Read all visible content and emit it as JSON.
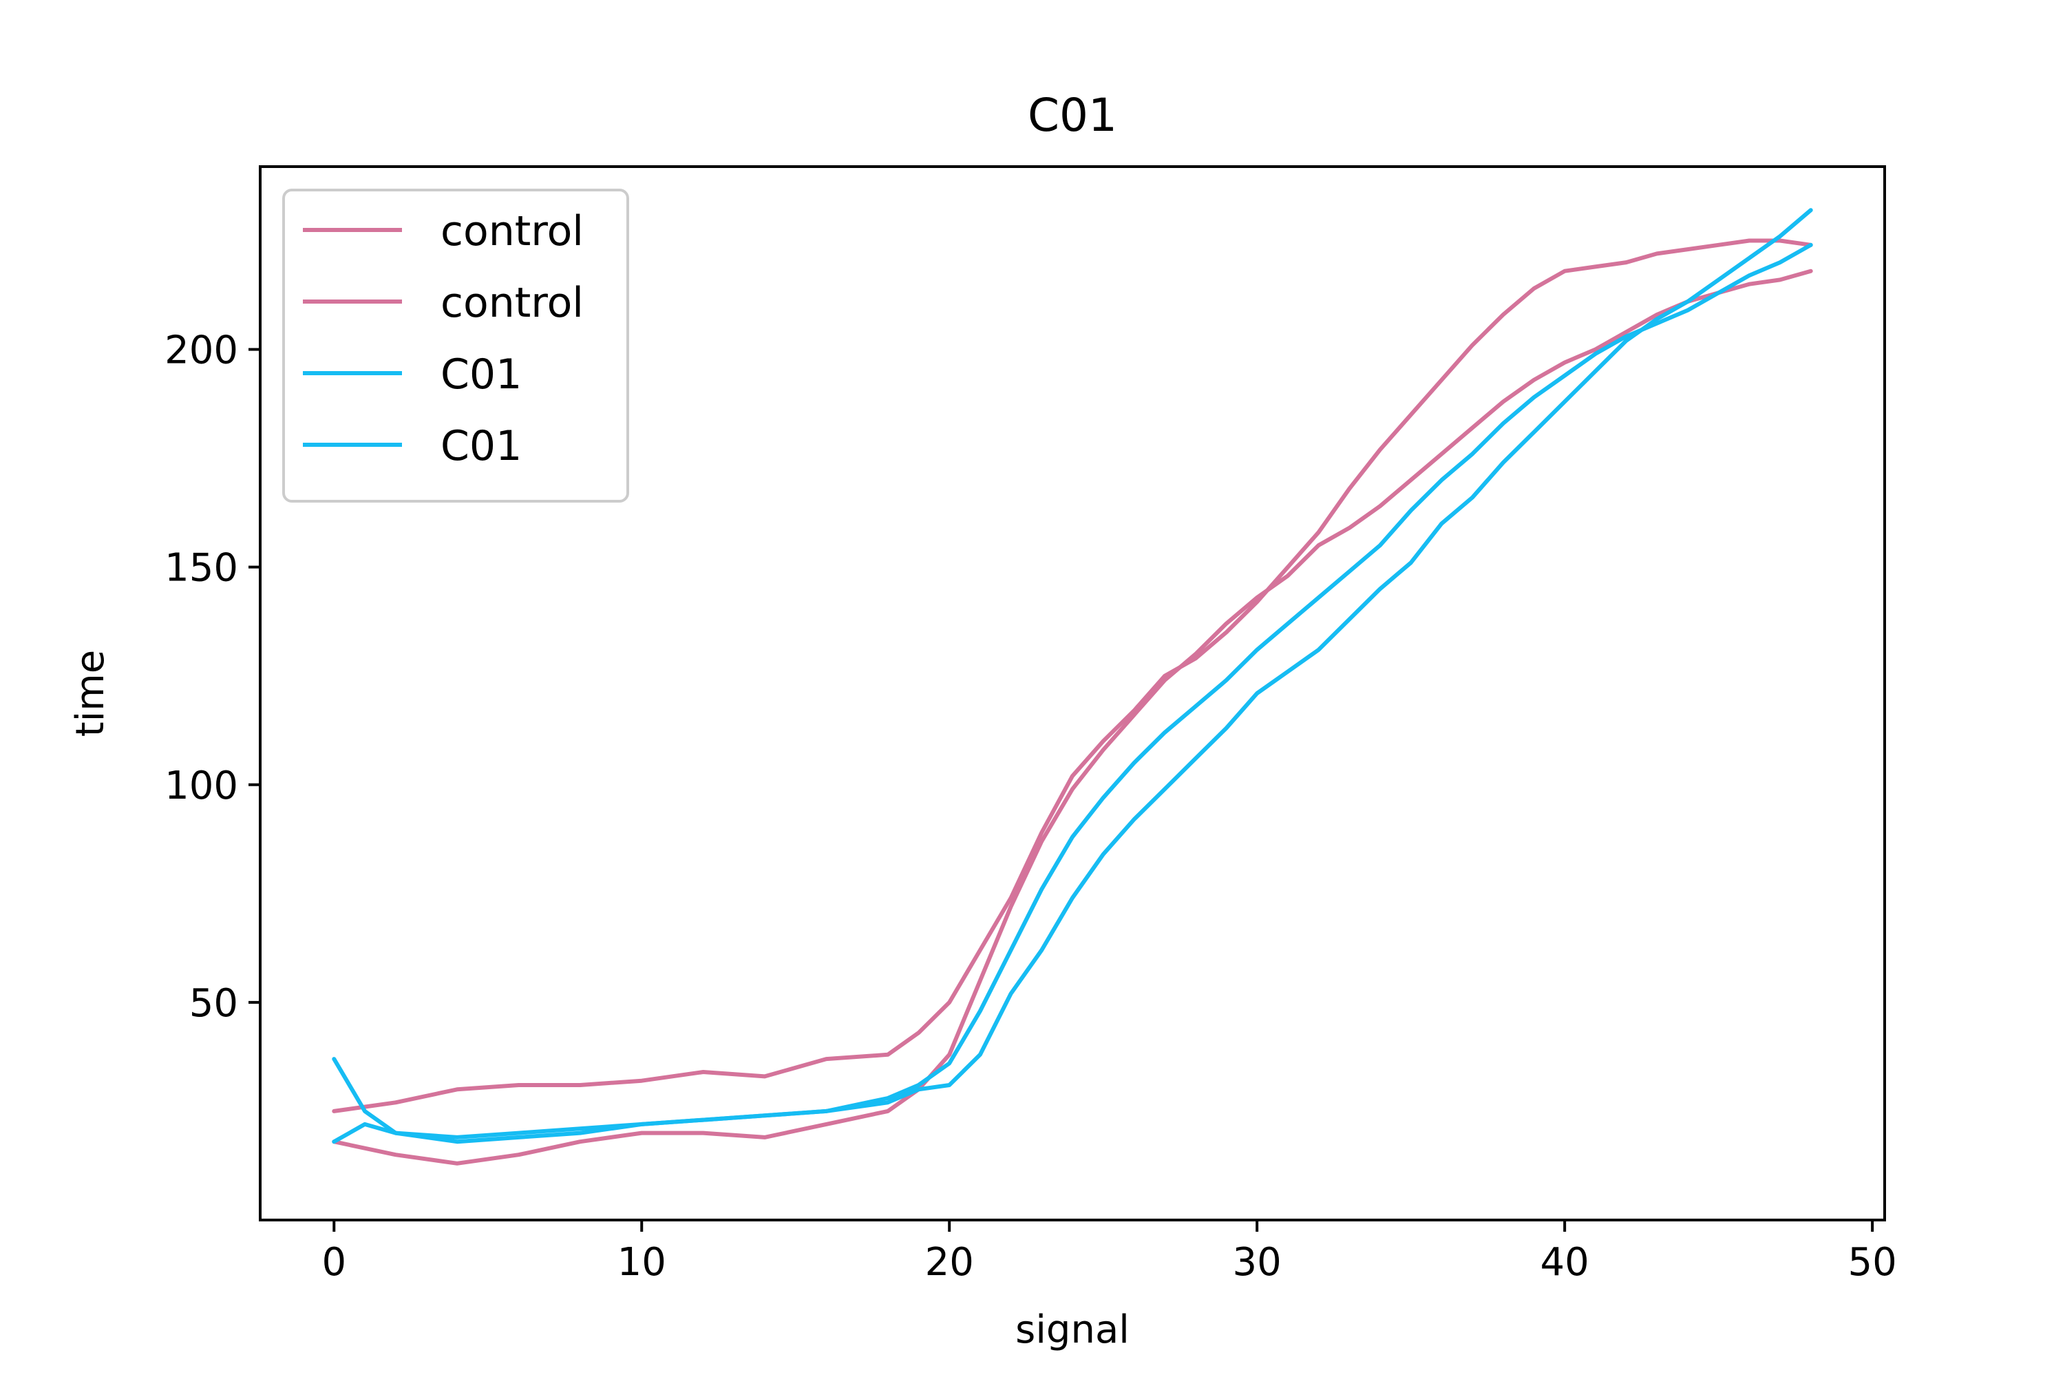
{
  "chart_data": {
    "type": "line",
    "title": "C01",
    "xlabel": "signal",
    "ylabel": "time",
    "xlim": [
      -2.4,
      50.4
    ],
    "ylim": [
      0,
      242
    ],
    "xticks": [
      0,
      10,
      20,
      30,
      40,
      50
    ],
    "xtick_labels": [
      "0",
      "10",
      "20",
      "30",
      "40",
      "50"
    ],
    "yticks": [
      50,
      100,
      150,
      200
    ],
    "ytick_labels": [
      "50",
      "100",
      "150",
      "200"
    ],
    "grid": false,
    "legend": {
      "position": "top-left"
    },
    "colors": {
      "control": "#d4739a",
      "C01": "#16bcf3"
    },
    "series": [
      {
        "name": "control",
        "color": "#d4739a",
        "x": [
          0,
          2,
          4,
          6,
          8,
          10,
          12,
          14,
          16,
          18,
          19,
          20,
          21,
          22,
          23,
          24,
          25,
          26,
          27,
          28,
          29,
          30,
          31,
          32,
          33,
          34,
          35,
          36,
          37,
          38,
          39,
          40,
          41,
          42,
          43,
          44,
          45,
          46,
          47,
          48
        ],
        "y": [
          25,
          27,
          30,
          31,
          31,
          32,
          34,
          33,
          37,
          38,
          43,
          50,
          62,
          74,
          89,
          102,
          110,
          117,
          125,
          129,
          135,
          142,
          150,
          158,
          168,
          177,
          185,
          193,
          201,
          208,
          214,
          218,
          219,
          220,
          222,
          223,
          224,
          225,
          225,
          224
        ]
      },
      {
        "name": "control",
        "color": "#d4739a",
        "x": [
          0,
          2,
          4,
          6,
          8,
          10,
          12,
          14,
          16,
          18,
          19,
          20,
          21,
          22,
          23,
          24,
          25,
          26,
          27,
          28,
          29,
          30,
          31,
          32,
          33,
          34,
          35,
          36,
          37,
          38,
          39,
          40,
          41,
          42,
          43,
          44,
          45,
          46,
          47,
          48
        ],
        "y": [
          18,
          15,
          13,
          15,
          18,
          20,
          20,
          19,
          22,
          25,
          30,
          38,
          55,
          72,
          87,
          99,
          108,
          116,
          124,
          130,
          137,
          143,
          148,
          155,
          159,
          164,
          170,
          176,
          182,
          188,
          193,
          197,
          200,
          204,
          208,
          211,
          213,
          215,
          216,
          218
        ]
      },
      {
        "name": "C01",
        "color": "#16bcf3",
        "x": [
          0,
          1,
          2,
          4,
          6,
          8,
          10,
          12,
          14,
          16,
          18,
          19,
          20,
          21,
          22,
          23,
          24,
          25,
          26,
          27,
          28,
          29,
          30,
          31,
          32,
          33,
          34,
          35,
          36,
          37,
          38,
          39,
          40,
          41,
          42,
          43,
          44,
          45,
          46,
          47,
          48
        ],
        "y": [
          37,
          25,
          20,
          18,
          19,
          20,
          22,
          23,
          24,
          25,
          28,
          31,
          36,
          48,
          62,
          76,
          88,
          97,
          105,
          112,
          118,
          124,
          131,
          137,
          143,
          149,
          155,
          163,
          170,
          176,
          183,
          189,
          194,
          199,
          203,
          206,
          209,
          213,
          217,
          220,
          224
        ]
      },
      {
        "name": "C01",
        "color": "#16bcf3",
        "x": [
          0,
          1,
          2,
          4,
          6,
          8,
          10,
          12,
          14,
          16,
          18,
          19,
          20,
          21,
          22,
          23,
          24,
          25,
          26,
          27,
          28,
          29,
          30,
          31,
          32,
          33,
          34,
          35,
          36,
          37,
          38,
          39,
          40,
          41,
          42,
          43,
          44,
          45,
          46,
          47,
          48
        ],
        "y": [
          18,
          22,
          20,
          19,
          20,
          21,
          22,
          23,
          24,
          25,
          27,
          30,
          31,
          38,
          52,
          62,
          74,
          84,
          92,
          99,
          106,
          113,
          121,
          126,
          131,
          138,
          145,
          151,
          160,
          166,
          174,
          181,
          188,
          195,
          202,
          207,
          211,
          216,
          221,
          226,
          232
        ]
      }
    ]
  }
}
